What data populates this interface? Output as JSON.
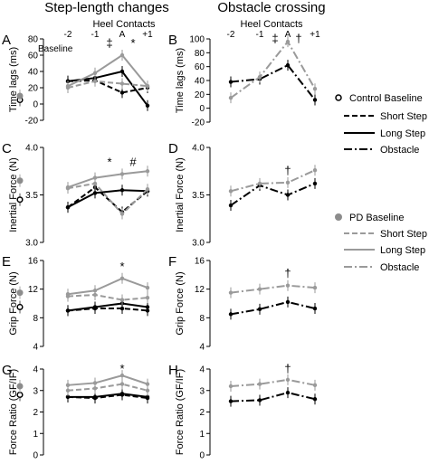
{
  "titles": {
    "left": "Step-length changes",
    "right": "Obstacle crossing"
  },
  "heel_contacts_label": "Heel Contacts",
  "colors": {
    "control": "#000000",
    "pd": "#9a9a9a",
    "pd_marker": "#8c8c8c"
  },
  "legend": {
    "control_items": [
      "Control Baseline",
      "Short Step",
      "Long Step",
      "Obstacle"
    ],
    "pd_items": [
      "PD Baseline",
      "Short Step",
      "Long Step",
      "Obstacle"
    ]
  },
  "chart_data": [
    {
      "panel": "A",
      "type": "line",
      "x_ticks": [
        "-2",
        "-1",
        "A",
        "+1"
      ],
      "baseline_label": "Baseline",
      "ylabel": "Time lags (ms)",
      "ylim": [
        -20,
        80
      ],
      "y_ticks": [
        "-20",
        "0",
        "20",
        "40",
        "60",
        "80"
      ],
      "annotations": [
        "‡",
        "*"
      ],
      "baseline": {
        "control": 5,
        "pd": 10
      },
      "series": [
        {
          "group": "control",
          "condition": "Short Step",
          "values": [
            28,
            29,
            14,
            20
          ]
        },
        {
          "group": "control",
          "condition": "Long Step",
          "values": [
            28,
            32,
            40,
            -2
          ]
        },
        {
          "group": "pd",
          "condition": "Short Step",
          "values": [
            20,
            28,
            25,
            22
          ]
        },
        {
          "group": "pd",
          "condition": "Long Step",
          "values": [
            22,
            38,
            60,
            22
          ]
        }
      ]
    },
    {
      "panel": "B",
      "type": "line",
      "x_ticks": [
        "-2",
        "-1",
        "A",
        "+1"
      ],
      "ylabel": "Time lags (ms)",
      "ylim": [
        -20,
        100
      ],
      "y_ticks": [
        "-20",
        "0",
        "20",
        "40",
        "60",
        "80",
        "100"
      ],
      "annotations": [
        "‡",
        "†"
      ],
      "series": [
        {
          "group": "control",
          "condition": "Obstacle",
          "values": [
            38,
            42,
            62,
            12
          ]
        },
        {
          "group": "pd",
          "condition": "Obstacle",
          "values": [
            15,
            45,
            96,
            28
          ]
        }
      ]
    },
    {
      "panel": "C",
      "type": "line",
      "x_ticks": [
        "-2",
        "-1",
        "A",
        "+1"
      ],
      "ylabel": "Inertial Force (N)",
      "ylim": [
        3.0,
        4.0
      ],
      "y_ticks": [
        "3.0",
        "3.5",
        "4.0"
      ],
      "annotations": [
        "*",
        "#"
      ],
      "baseline": {
        "control": 3.45,
        "pd": 3.65
      },
      "series": [
        {
          "group": "control",
          "condition": "Short Step",
          "values": [
            3.37,
            3.58,
            3.32,
            3.54
          ]
        },
        {
          "group": "control",
          "condition": "Long Step",
          "values": [
            3.37,
            3.52,
            3.55,
            3.54
          ]
        },
        {
          "group": "pd",
          "condition": "Short Step",
          "values": [
            3.57,
            3.62,
            3.3,
            3.56
          ]
        },
        {
          "group": "pd",
          "condition": "Long Step",
          "values": [
            3.58,
            3.68,
            3.72,
            3.75
          ]
        }
      ]
    },
    {
      "panel": "D",
      "type": "line",
      "x_ticks": [
        "-2",
        "-1",
        "A",
        "+1"
      ],
      "ylabel": "Inertial Force (N)",
      "ylim": [
        3.0,
        4.0
      ],
      "y_ticks": [
        "3.0",
        "3.5",
        "4.0"
      ],
      "annotations": [
        "†"
      ],
      "series": [
        {
          "group": "control",
          "condition": "Obstacle",
          "values": [
            3.39,
            3.6,
            3.5,
            3.62
          ]
        },
        {
          "group": "pd",
          "condition": "Obstacle",
          "values": [
            3.54,
            3.62,
            3.63,
            3.76
          ]
        }
      ]
    },
    {
      "panel": "E",
      "type": "line",
      "x_ticks": [
        "-2",
        "-1",
        "A",
        "+1"
      ],
      "ylabel": "Grip Force (N)",
      "ylim": [
        4,
        16
      ],
      "y_ticks": [
        "4",
        "8",
        "12",
        "16"
      ],
      "annotations": [
        "*"
      ],
      "baseline": {
        "control": 9.5,
        "pd": 11.5
      },
      "series": [
        {
          "group": "control",
          "condition": "Short Step",
          "values": [
            9.0,
            9.3,
            9.3,
            9.0
          ]
        },
        {
          "group": "control",
          "condition": "Long Step",
          "values": [
            9.0,
            9.5,
            10.0,
            9.5
          ]
        },
        {
          "group": "pd",
          "condition": "Short Step",
          "values": [
            11.0,
            11.2,
            10.5,
            10.8
          ]
        },
        {
          "group": "pd",
          "condition": "Long Step",
          "values": [
            11.3,
            11.8,
            13.5,
            12.2
          ]
        }
      ]
    },
    {
      "panel": "F",
      "type": "line",
      "x_ticks": [
        "-2",
        "-1",
        "A",
        "+1"
      ],
      "ylabel": "Grip Force (N)",
      "ylim": [
        4,
        16
      ],
      "y_ticks": [
        "4",
        "8",
        "12",
        "16"
      ],
      "annotations": [
        "†"
      ],
      "series": [
        {
          "group": "control",
          "condition": "Obstacle",
          "values": [
            8.5,
            9.2,
            10.2,
            9.3
          ]
        },
        {
          "group": "pd",
          "condition": "Obstacle",
          "values": [
            11.5,
            12.0,
            12.5,
            12.2
          ]
        }
      ]
    },
    {
      "panel": "G",
      "type": "line",
      "x_ticks": [
        "-2",
        "-1",
        "A",
        "+1"
      ],
      "ylabel": "Force Ratio (GF/IF)",
      "ylim": [
        0,
        4
      ],
      "y_ticks": [
        "0",
        "1",
        "2",
        "3",
        "4"
      ],
      "annotations": [
        "*"
      ],
      "baseline": {
        "control": 2.8,
        "pd": 3.2
      },
      "series": [
        {
          "group": "control",
          "condition": "Short Step",
          "values": [
            2.7,
            2.65,
            2.8,
            2.65
          ]
        },
        {
          "group": "control",
          "condition": "Long Step",
          "values": [
            2.7,
            2.7,
            2.85,
            2.7
          ]
        },
        {
          "group": "pd",
          "condition": "Short Step",
          "values": [
            3.0,
            3.1,
            3.3,
            3.0
          ]
        },
        {
          "group": "pd",
          "condition": "Long Step",
          "values": [
            3.25,
            3.35,
            3.7,
            3.3
          ]
        }
      ]
    },
    {
      "panel": "H",
      "type": "line",
      "x_ticks": [
        "-2",
        "-1",
        "A",
        "+1"
      ],
      "ylabel": "Force Ratio (GF/IF)",
      "ylim": [
        0,
        4
      ],
      "y_ticks": [
        "0",
        "1",
        "2",
        "3",
        "4"
      ],
      "annotations": [
        "†"
      ],
      "series": [
        {
          "group": "control",
          "condition": "Obstacle",
          "values": [
            2.5,
            2.55,
            2.9,
            2.6
          ]
        },
        {
          "group": "pd",
          "condition": "Obstacle",
          "values": [
            3.2,
            3.3,
            3.5,
            3.25
          ]
        }
      ]
    }
  ]
}
